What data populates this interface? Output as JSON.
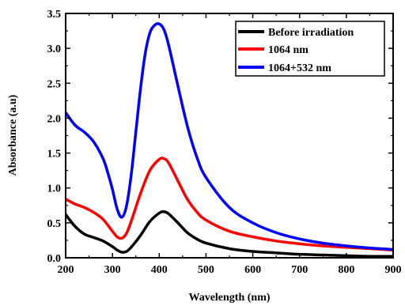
{
  "chart_data": {
    "type": "line",
    "title": "",
    "xlabel": "Wavelength (nm)",
    "ylabel": "Absorbance (a.u)",
    "xlim": [
      200,
      900
    ],
    "ylim": [
      0,
      3.5
    ],
    "x_ticks": [
      200,
      300,
      400,
      500,
      600,
      700,
      800,
      900
    ],
    "x_tick_labels": [
      "200",
      "300",
      "400",
      "500",
      "600",
      "700",
      "800",
      "900"
    ],
    "y_ticks": [
      0,
      0.5,
      1.0,
      1.5,
      2.0,
      2.5,
      3.0,
      3.5
    ],
    "y_tick_labels": [
      "0.0",
      "0.5",
      "1.0",
      "1.5",
      "2.0",
      "2.5",
      "3.0",
      "3.5"
    ],
    "grid": false,
    "legend_position": "top-right",
    "series": [
      {
        "name": "Before irradiation",
        "color": "#000000",
        "x": [
          200,
          220,
          240,
          260,
          280,
          300,
          310,
          320,
          330,
          340,
          360,
          380,
          400,
          410,
          420,
          440,
          460,
          480,
          500,
          550,
          600,
          650,
          700,
          750,
          800,
          850,
          900
        ],
        "y": [
          0.62,
          0.45,
          0.34,
          0.29,
          0.24,
          0.16,
          0.11,
          0.08,
          0.09,
          0.15,
          0.32,
          0.52,
          0.64,
          0.66,
          0.63,
          0.5,
          0.36,
          0.27,
          0.21,
          0.13,
          0.09,
          0.07,
          0.05,
          0.04,
          0.03,
          0.02,
          0.02
        ]
      },
      {
        "name": "1064 nm",
        "color": "#ff0000",
        "x": [
          200,
          220,
          240,
          260,
          280,
          300,
          310,
          320,
          330,
          340,
          360,
          380,
          400,
          410,
          420,
          440,
          460,
          480,
          500,
          550,
          600,
          650,
          700,
          750,
          800,
          850,
          900
        ],
        "y": [
          0.84,
          0.77,
          0.72,
          0.65,
          0.55,
          0.38,
          0.3,
          0.28,
          0.35,
          0.52,
          0.92,
          1.25,
          1.41,
          1.42,
          1.36,
          1.1,
          0.84,
          0.66,
          0.54,
          0.38,
          0.3,
          0.24,
          0.2,
          0.17,
          0.15,
          0.13,
          0.11
        ]
      },
      {
        "name": "1064+532 nm",
        "color": "#0000ff",
        "x": [
          200,
          220,
          240,
          260,
          280,
          290,
          300,
          310,
          320,
          330,
          340,
          350,
          360,
          370,
          380,
          390,
          400,
          410,
          420,
          440,
          460,
          480,
          500,
          550,
          600,
          650,
          700,
          750,
          800,
          850,
          900
        ],
        "y": [
          2.08,
          1.9,
          1.8,
          1.66,
          1.42,
          1.22,
          0.98,
          0.7,
          0.58,
          0.74,
          1.18,
          1.8,
          2.42,
          2.92,
          3.22,
          3.33,
          3.35,
          3.27,
          3.05,
          2.46,
          1.89,
          1.45,
          1.15,
          0.72,
          0.5,
          0.36,
          0.27,
          0.21,
          0.17,
          0.14,
          0.12
        ]
      }
    ]
  }
}
